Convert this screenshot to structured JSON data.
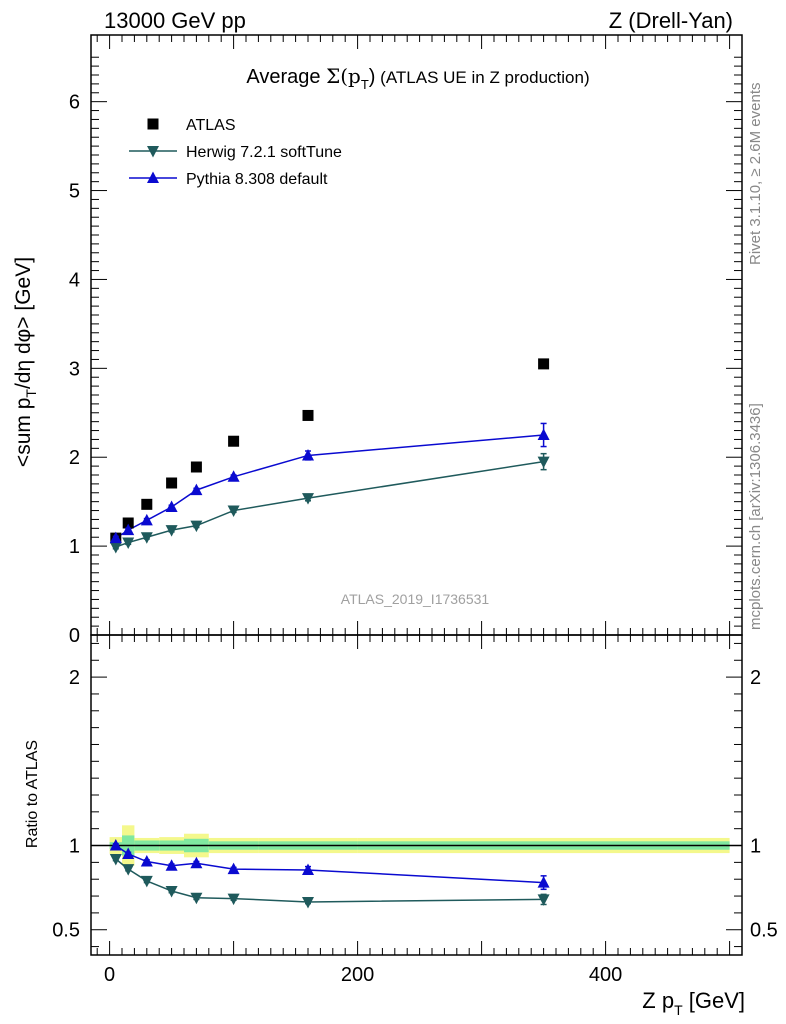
{
  "header": {
    "left": "13000 GeV pp",
    "right": "Z (Drell-Yan)"
  },
  "side_texts": {
    "rivet": "Rivet 3.1.10, ≥ 2.6M events",
    "mcplots": "mcplots.cern.ch [arXiv:1306.3436]"
  },
  "chart_data": {
    "type": "scatter",
    "title": {
      "prefix": "Average ",
      "sigma": "Σ(p",
      "sub": "T",
      "close": ")",
      "rest": " (ATLAS UE in Z production)"
    },
    "watermark": "ATLAS_2019_I1736531",
    "xlabel": {
      "main": "Z p",
      "sub": "T",
      "unit": " [GeV]"
    },
    "ylabel": {
      "p1": "<sum p",
      "sub": "T",
      "p2": "/dη dφ> [GeV]"
    },
    "ratio_ylabel": "Ratio to ATLAS",
    "xlim": [
      -15,
      510
    ],
    "ylim": [
      0,
      6.75
    ],
    "ratio_ylim": [
      0.35,
      2.25
    ],
    "x_ticks": [
      0,
      200,
      400
    ],
    "y_ticks": [
      0,
      1,
      2,
      3,
      4,
      5,
      6
    ],
    "ratio_ticks": [
      0.5,
      1,
      2
    ],
    "grid": false,
    "legend_position": "top-left",
    "x": [
      5,
      15,
      30,
      50,
      70,
      100,
      160,
      350
    ],
    "series": [
      {
        "name": "ATLAS",
        "marker": "square",
        "color": "#000000",
        "line": false,
        "values": [
          1.09,
          1.26,
          1.47,
          1.71,
          1.89,
          2.18,
          2.47,
          3.05
        ],
        "ratio": null
      },
      {
        "name": "Herwig 7.2.1 softTune",
        "marker": "triangle-down",
        "color": "#1f5a5c",
        "line": true,
        "values": [
          0.99,
          1.04,
          1.1,
          1.18,
          1.23,
          1.4,
          1.54,
          1.95
        ],
        "errors": [
          0.02,
          0.02,
          0.02,
          0.02,
          0.02,
          0.02,
          0.03,
          0.09
        ],
        "ratio": [
          0.92,
          0.86,
          0.79,
          0.73,
          0.69,
          0.685,
          0.665,
          0.68
        ],
        "ratio_errors": [
          0.01,
          0.01,
          0.01,
          0.01,
          0.01,
          0.01,
          0.01,
          0.03
        ]
      },
      {
        "name": "Pythia 8.308 default",
        "marker": "triangle-up",
        "color": "#0a0ad0",
        "line": true,
        "values": [
          1.09,
          1.18,
          1.29,
          1.44,
          1.63,
          1.78,
          2.02,
          2.25
        ],
        "errors": [
          0.02,
          0.02,
          0.02,
          0.02,
          0.02,
          0.02,
          0.05,
          0.13
        ],
        "ratio": [
          1.0,
          0.95,
          0.905,
          0.88,
          0.895,
          0.86,
          0.855,
          0.78
        ],
        "ratio_errors": [
          0.01,
          0.01,
          0.01,
          0.01,
          0.01,
          0.01,
          0.02,
          0.04
        ]
      }
    ],
    "data_bands": {
      "bins": [
        [
          0,
          10
        ],
        [
          10,
          20
        ],
        [
          20,
          40
        ],
        [
          40,
          60
        ],
        [
          60,
          80
        ],
        [
          80,
          120
        ],
        [
          120,
          200
        ],
        [
          200,
          500
        ]
      ],
      "inner": [
        0.02,
        0.06,
        0.03,
        0.03,
        0.04,
        0.025,
        0.025,
        0.025
      ],
      "outer": [
        0.05,
        0.12,
        0.045,
        0.05,
        0.07,
        0.045,
        0.045,
        0.045
      ],
      "inner_color": "#80e8a0",
      "outer_color": "#f4f88c"
    }
  }
}
